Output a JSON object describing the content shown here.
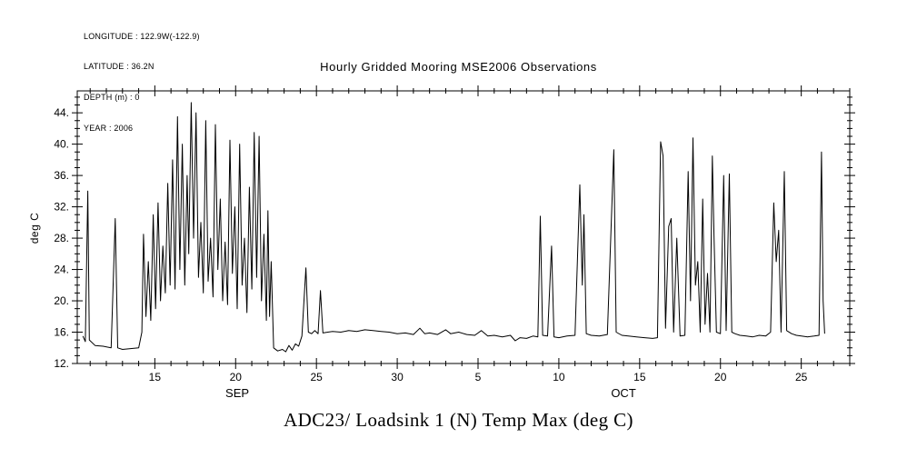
{
  "metadata": {
    "lines": [
      "LONGITUDE : 122.9W(-122.9)",
      "LATITUDE : 36.2N",
      "DEPTH (m) : 0",
      "YEAR : 2006"
    ]
  },
  "colors": {
    "background": "#ffffff",
    "axis": "#000000",
    "text": "#000000",
    "line": "#000000"
  },
  "chart_data": {
    "type": "line",
    "title": "Hourly Gridded Mooring MSE2006 Observations",
    "caption": "ADC23/ Loadsink 1 (N) Temp Max (deg C)",
    "ylabel": "deg C",
    "grid": false,
    "legend": "none",
    "x_axis": {
      "unit": "day of month (t = September day; October day d = 30 + d)",
      "range": [
        10.2,
        58.0
      ],
      "minor_tick_interval": 1,
      "major_ticks": [
        {
          "t": 15,
          "label": "15"
        },
        {
          "t": 20,
          "label": "20"
        },
        {
          "t": 25,
          "label": "25"
        },
        {
          "t": 30,
          "label": "30"
        },
        {
          "t": 35,
          "label": "5"
        },
        {
          "t": 40,
          "label": "10"
        },
        {
          "t": 45,
          "label": "15"
        },
        {
          "t": 50,
          "label": "20"
        },
        {
          "t": 55,
          "label": "25"
        }
      ],
      "month_labels": [
        {
          "t": 20.1,
          "label": "SEP"
        },
        {
          "t": 44.0,
          "label": "OCT"
        }
      ]
    },
    "y_axis": {
      "range": [
        12,
        46.8
      ],
      "minor_tick_interval": 1,
      "major_ticks": [
        {
          "v": 12,
          "label": "12."
        },
        {
          "v": 16,
          "label": "16."
        },
        {
          "v": 20,
          "label": "20."
        },
        {
          "v": 24,
          "label": "24."
        },
        {
          "v": 28,
          "label": "28."
        },
        {
          "v": 32,
          "label": "32."
        },
        {
          "v": 36,
          "label": "36."
        },
        {
          "v": 40,
          "label": "40."
        },
        {
          "v": 44,
          "label": "44."
        }
      ]
    },
    "series": [
      {
        "name": "Temp Max (deg C)",
        "color": "#000000",
        "points": [
          [
            10.55,
            15.5
          ],
          [
            10.7,
            14.8
          ],
          [
            10.85,
            34.0
          ],
          [
            10.95,
            15.0
          ],
          [
            11.3,
            14.3
          ],
          [
            11.8,
            14.2
          ],
          [
            12.3,
            14.0
          ],
          [
            12.55,
            30.5
          ],
          [
            12.7,
            14.0
          ],
          [
            13.0,
            13.8
          ],
          [
            13.5,
            13.9
          ],
          [
            14.0,
            14.0
          ],
          [
            14.2,
            16.0
          ],
          [
            14.3,
            28.5
          ],
          [
            14.45,
            18.0
          ],
          [
            14.6,
            25.0
          ],
          [
            14.75,
            17.5
          ],
          [
            14.9,
            31.0
          ],
          [
            15.05,
            19.0
          ],
          [
            15.2,
            32.5
          ],
          [
            15.35,
            20.0
          ],
          [
            15.5,
            27.0
          ],
          [
            15.65,
            21.0
          ],
          [
            15.8,
            35.0
          ],
          [
            15.95,
            22.0
          ],
          [
            16.1,
            38.0
          ],
          [
            16.25,
            21.5
          ],
          [
            16.4,
            43.5
          ],
          [
            16.55,
            24.0
          ],
          [
            16.7,
            40.0
          ],
          [
            16.85,
            22.0
          ],
          [
            17.0,
            36.0
          ],
          [
            17.1,
            26.0
          ],
          [
            17.25,
            45.3
          ],
          [
            17.4,
            28.0
          ],
          [
            17.55,
            44.0
          ],
          [
            17.7,
            23.0
          ],
          [
            17.85,
            30.0
          ],
          [
            18.0,
            21.0
          ],
          [
            18.15,
            43.0
          ],
          [
            18.3,
            22.5
          ],
          [
            18.45,
            28.0
          ],
          [
            18.6,
            20.5
          ],
          [
            18.75,
            42.5
          ],
          [
            18.9,
            24.0
          ],
          [
            19.05,
            33.0
          ],
          [
            19.2,
            20.0
          ],
          [
            19.35,
            27.5
          ],
          [
            19.5,
            19.5
          ],
          [
            19.65,
            40.5
          ],
          [
            19.8,
            23.5
          ],
          [
            19.95,
            32.0
          ],
          [
            20.1,
            19.0
          ],
          [
            20.25,
            40.0
          ],
          [
            20.4,
            22.0
          ],
          [
            20.55,
            28.0
          ],
          [
            20.7,
            18.5
          ],
          [
            20.85,
            34.5
          ],
          [
            21.0,
            21.5
          ],
          [
            21.15,
            41.5
          ],
          [
            21.3,
            23.0
          ],
          [
            21.45,
            41.0
          ],
          [
            21.6,
            20.0
          ],
          [
            21.75,
            28.5
          ],
          [
            21.9,
            17.5
          ],
          [
            22.0,
            31.5
          ],
          [
            22.1,
            18.0
          ],
          [
            22.2,
            25.0
          ],
          [
            22.35,
            14.0
          ],
          [
            22.6,
            13.6
          ],
          [
            22.9,
            13.8
          ],
          [
            23.1,
            13.5
          ],
          [
            23.3,
            14.3
          ],
          [
            23.5,
            13.7
          ],
          [
            23.7,
            14.5
          ],
          [
            23.9,
            14.2
          ],
          [
            24.1,
            15.5
          ],
          [
            24.35,
            24.2
          ],
          [
            24.5,
            16.0
          ],
          [
            24.7,
            15.8
          ],
          [
            24.9,
            16.2
          ],
          [
            25.1,
            15.8
          ],
          [
            25.25,
            21.3
          ],
          [
            25.4,
            15.9
          ],
          [
            25.7,
            16.0
          ],
          [
            26.0,
            16.1
          ],
          [
            26.5,
            16.0
          ],
          [
            27.0,
            16.2
          ],
          [
            27.5,
            16.1
          ],
          [
            28.0,
            16.3
          ],
          [
            28.5,
            16.2
          ],
          [
            29.0,
            16.1
          ],
          [
            29.5,
            16.0
          ],
          [
            30.0,
            15.8
          ],
          [
            30.5,
            15.9
          ],
          [
            31.0,
            15.7
          ],
          [
            31.4,
            16.5
          ],
          [
            31.7,
            15.8
          ],
          [
            32.0,
            15.9
          ],
          [
            32.5,
            15.7
          ],
          [
            33.0,
            16.3
          ],
          [
            33.3,
            15.8
          ],
          [
            33.8,
            16.0
          ],
          [
            34.3,
            15.7
          ],
          [
            34.8,
            15.6
          ],
          [
            35.2,
            16.2
          ],
          [
            35.6,
            15.5
          ],
          [
            36.0,
            15.6
          ],
          [
            36.5,
            15.4
          ],
          [
            37.0,
            15.6
          ],
          [
            37.3,
            14.9
          ],
          [
            37.6,
            15.3
          ],
          [
            38.0,
            15.2
          ],
          [
            38.4,
            15.5
          ],
          [
            38.7,
            15.4
          ],
          [
            38.85,
            30.8
          ],
          [
            39.0,
            15.6
          ],
          [
            39.3,
            15.5
          ],
          [
            39.55,
            27.0
          ],
          [
            39.7,
            15.4
          ],
          [
            40.0,
            15.3
          ],
          [
            40.5,
            15.5
          ],
          [
            41.0,
            15.6
          ],
          [
            41.3,
            34.8
          ],
          [
            41.45,
            22.0
          ],
          [
            41.55,
            31.0
          ],
          [
            41.7,
            15.8
          ],
          [
            42.0,
            15.6
          ],
          [
            42.5,
            15.5
          ],
          [
            43.0,
            15.7
          ],
          [
            43.4,
            39.3
          ],
          [
            43.55,
            16.0
          ],
          [
            43.9,
            15.6
          ],
          [
            44.3,
            15.5
          ],
          [
            44.8,
            15.4
          ],
          [
            45.3,
            15.3
          ],
          [
            45.8,
            15.2
          ],
          [
            46.1,
            15.3
          ],
          [
            46.3,
            40.3
          ],
          [
            46.45,
            38.5
          ],
          [
            46.6,
            16.5
          ],
          [
            46.8,
            29.5
          ],
          [
            46.95,
            30.5
          ],
          [
            47.1,
            16.0
          ],
          [
            47.3,
            28.0
          ],
          [
            47.5,
            15.5
          ],
          [
            47.8,
            15.6
          ],
          [
            48.0,
            36.5
          ],
          [
            48.15,
            20.0
          ],
          [
            48.3,
            40.8
          ],
          [
            48.45,
            22.0
          ],
          [
            48.6,
            25.0
          ],
          [
            48.75,
            16.0
          ],
          [
            48.9,
            33.0
          ],
          [
            49.05,
            17.0
          ],
          [
            49.2,
            23.5
          ],
          [
            49.35,
            16.0
          ],
          [
            49.5,
            38.5
          ],
          [
            49.6,
            28.5
          ],
          [
            49.75,
            16.0
          ],
          [
            50.0,
            15.8
          ],
          [
            50.2,
            36.0
          ],
          [
            50.35,
            16.2
          ],
          [
            50.55,
            36.2
          ],
          [
            50.7,
            16.0
          ],
          [
            50.9,
            15.8
          ],
          [
            51.2,
            15.6
          ],
          [
            51.6,
            15.5
          ],
          [
            52.0,
            15.4
          ],
          [
            52.4,
            15.6
          ],
          [
            52.8,
            15.5
          ],
          [
            53.1,
            16.0
          ],
          [
            53.3,
            32.5
          ],
          [
            53.45,
            25.0
          ],
          [
            53.6,
            29.0
          ],
          [
            53.75,
            16.0
          ],
          [
            53.95,
            36.5
          ],
          [
            54.1,
            16.2
          ],
          [
            54.4,
            15.8
          ],
          [
            54.7,
            15.6
          ],
          [
            55.0,
            15.5
          ],
          [
            55.4,
            15.4
          ],
          [
            55.8,
            15.5
          ],
          [
            56.1,
            15.6
          ],
          [
            56.25,
            39.0
          ],
          [
            56.35,
            20.0
          ],
          [
            56.45,
            15.8
          ]
        ]
      }
    ]
  }
}
